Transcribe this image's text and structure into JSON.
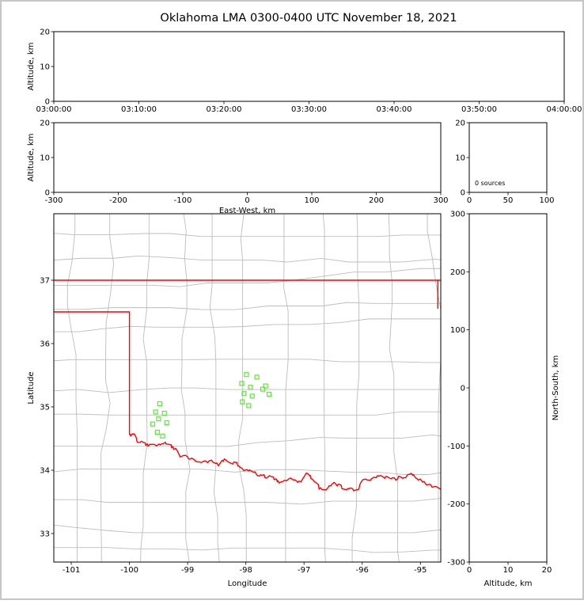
{
  "title": "Oklahoma LMA 0300-0400 UTC November 18, 2021",
  "colors": {
    "state_border": "#ff0000",
    "county_lines": "#bdbdbd",
    "station_marker": "#5ce83a",
    "axes": "#000000",
    "figure_border": "#c6c6c6",
    "background": "#ffffff"
  },
  "chart_data": [
    {
      "id": "time_height",
      "type": "scatter",
      "xlim": [
        0,
        6
      ],
      "ylim": [
        0,
        20
      ],
      "xtick_values": [
        0,
        1,
        2,
        3,
        4,
        5,
        6
      ],
      "xtick_labels": [
        "03:00:00",
        "03:10:00",
        "03:20:00",
        "03:30:00",
        "03:40:00",
        "03:50:00",
        "04:00:00"
      ],
      "ytick_values": [
        0,
        10,
        20
      ],
      "ylabel": "Altitude, km",
      "points": []
    },
    {
      "id": "ew_height",
      "type": "scatter",
      "xlim": [
        -300,
        300
      ],
      "ylim": [
        0,
        20
      ],
      "xtick_values": [
        -300,
        -200,
        -100,
        0,
        100,
        200,
        300
      ],
      "ytick_values": [
        0,
        10,
        20
      ],
      "xlabel": "East-West, km",
      "ylabel": "Altitude, km",
      "points": []
    },
    {
      "id": "alt_hist",
      "type": "scatter",
      "xlim": [
        0,
        100
      ],
      "ylim": [
        0,
        20
      ],
      "xtick_values": [
        0,
        50,
        100
      ],
      "ytick_values": [
        0,
        10,
        20
      ],
      "annotation": "0 sources",
      "points": []
    },
    {
      "id": "map",
      "type": "scatter",
      "xlim": [
        -101.3,
        -94.65
      ],
      "ylim": [
        32.55,
        38.05
      ],
      "xtick_values": [
        -101,
        -100,
        -99,
        -98,
        -97,
        -96,
        -95
      ],
      "ytick_values": [
        33,
        34,
        35,
        36,
        37
      ],
      "xlabel": "Longitude",
      "ylabel": "Latitude",
      "stations": [
        [
          -97.99,
          35.51
        ],
        [
          -97.81,
          35.47
        ],
        [
          -98.07,
          35.37
        ],
        [
          -97.92,
          35.31
        ],
        [
          -97.71,
          35.28
        ],
        [
          -98.03,
          35.21
        ],
        [
          -97.89,
          35.17
        ],
        [
          -98.06,
          35.08
        ],
        [
          -97.95,
          35.02
        ],
        [
          -97.6,
          35.2
        ],
        [
          -97.66,
          35.33
        ],
        [
          -99.48,
          35.05
        ],
        [
          -99.55,
          34.92
        ],
        [
          -99.4,
          34.9
        ],
        [
          -99.5,
          34.81
        ],
        [
          -99.6,
          34.73
        ],
        [
          -99.36,
          34.75
        ],
        [
          -99.52,
          34.6
        ],
        [
          -99.43,
          34.54
        ]
      ],
      "state_border": [
        {
          "name": "kansas-line",
          "wiggle": false,
          "points": [
            [
              -101.3,
              37.0
            ],
            [
              -94.65,
              37.0
            ]
          ]
        },
        {
          "name": "missouri-line",
          "wiggle": false,
          "points": [
            [
              -94.7,
              37.0
            ],
            [
              -94.7,
              36.55
            ]
          ]
        },
        {
          "name": "panhandle-west-line",
          "wiggle": false,
          "points": [
            [
              -101.3,
              36.5
            ],
            [
              -100.0,
              36.5
            ],
            [
              -100.0,
              34.56
            ]
          ]
        },
        {
          "name": "red-river-line",
          "wiggle": true,
          "points": [
            [
              -100.0,
              34.56
            ],
            [
              -99.93,
              34.57
            ],
            [
              -99.87,
              34.45
            ],
            [
              -99.76,
              34.44
            ],
            [
              -99.68,
              34.38
            ],
            [
              -99.58,
              34.41
            ],
            [
              -99.47,
              34.4
            ],
            [
              -99.38,
              34.44
            ],
            [
              -99.28,
              34.4
            ],
            [
              -99.21,
              34.34
            ],
            [
              -99.13,
              34.21
            ],
            [
              -99.0,
              34.21
            ],
            [
              -98.91,
              34.18
            ],
            [
              -98.8,
              34.13
            ],
            [
              -98.66,
              34.12
            ],
            [
              -98.57,
              34.13
            ],
            [
              -98.47,
              34.07
            ],
            [
              -98.39,
              34.14
            ],
            [
              -98.3,
              34.13
            ],
            [
              -98.17,
              34.12
            ],
            [
              -98.09,
              34.04
            ],
            [
              -97.98,
              34.01
            ],
            [
              -97.87,
              33.97
            ],
            [
              -97.76,
              33.91
            ],
            [
              -97.67,
              33.88
            ],
            [
              -97.56,
              33.9
            ],
            [
              -97.46,
              33.82
            ],
            [
              -97.37,
              33.82
            ],
            [
              -97.25,
              33.87
            ],
            [
              -97.16,
              33.85
            ],
            [
              -97.05,
              33.82
            ],
            [
              -96.94,
              33.95
            ],
            [
              -96.85,
              33.85
            ],
            [
              -96.74,
              33.7
            ],
            [
              -96.62,
              33.69
            ],
            [
              -96.53,
              33.77
            ],
            [
              -96.42,
              33.77
            ],
            [
              -96.31,
              33.7
            ],
            [
              -96.21,
              33.72
            ],
            [
              -96.1,
              33.69
            ],
            [
              -95.99,
              33.85
            ],
            [
              -95.86,
              33.84
            ],
            [
              -95.76,
              33.88
            ],
            [
              -95.65,
              33.9
            ],
            [
              -95.54,
              33.88
            ],
            [
              -95.44,
              33.87
            ],
            [
              -95.33,
              33.89
            ],
            [
              -95.22,
              33.93
            ],
            [
              -95.12,
              33.93
            ],
            [
              -95.0,
              33.86
            ],
            [
              -94.9,
              33.77
            ],
            [
              -94.8,
              33.73
            ],
            [
              -94.65,
              33.7
            ]
          ]
        }
      ]
    },
    {
      "id": "ns_height",
      "type": "scatter",
      "xlim": [
        0,
        20
      ],
      "ylim": [
        -300,
        300
      ],
      "xtick_values": [
        0,
        10,
        20
      ],
      "ytick_values": [
        -300,
        -200,
        -100,
        0,
        100,
        200,
        300
      ],
      "xlabel": "Altitude, km",
      "ylabel": "North-South, km",
      "ylabel_side": "right",
      "points": []
    }
  ]
}
